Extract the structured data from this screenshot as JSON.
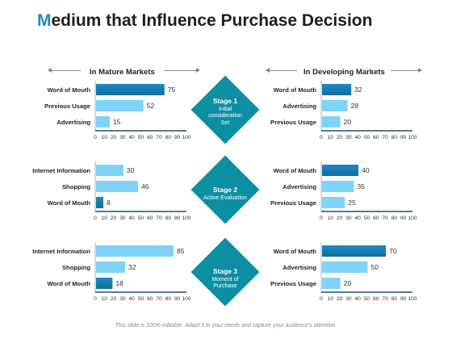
{
  "title": {
    "first_letter": "M",
    "rest": "edium that Influence Purchase Decision"
  },
  "sections": {
    "left": "In Mature Markets",
    "right": "In Developing Markets"
  },
  "stages": [
    {
      "name": "Stage 1",
      "desc": "Initial consideration Set"
    },
    {
      "name": "Stage 2",
      "desc": "Active Evaluation"
    },
    {
      "name": "Stage 3",
      "desc": "Moment of Purchase"
    }
  ],
  "footer": "This slide is 100% editable. Adapt it to your needs and capture your audience's attention.",
  "colors": {
    "light_bar": "#7fd3f7",
    "dark_bar_top": "#1e88c8",
    "dark_bar_bottom": "#0d6e9a",
    "axis": "#1f4e79",
    "diamond": "#0d8fa3"
  },
  "chart_data": [
    {
      "type": "bar",
      "orientation": "horizontal",
      "market": "In Mature Markets",
      "stage": "Stage 1",
      "categories": [
        "Word of Mouth",
        "Previous Usage",
        "Advertising"
      ],
      "values": [
        75,
        52,
        15
      ],
      "highlight": 0,
      "xlim": [
        0,
        100
      ],
      "ticks": [
        0,
        10,
        20,
        30,
        40,
        50,
        60,
        70,
        80,
        90,
        100
      ]
    },
    {
      "type": "bar",
      "orientation": "horizontal",
      "market": "In Developing Markets",
      "stage": "Stage 1",
      "categories": [
        "Word of Mouth",
        "Advertising",
        "Previous Usage"
      ],
      "values": [
        32,
        28,
        20
      ],
      "highlight": 0,
      "xlim": [
        0,
        100
      ],
      "ticks": [
        0,
        10,
        20,
        30,
        40,
        50,
        60,
        70,
        80,
        90,
        100
      ]
    },
    {
      "type": "bar",
      "orientation": "horizontal",
      "market": "In Mature Markets",
      "stage": "Stage 2",
      "categories": [
        "Internet Information",
        "Shopping",
        "Word of Mouth"
      ],
      "values": [
        30,
        46,
        8
      ],
      "highlight": 2,
      "xlim": [
        0,
        100
      ],
      "ticks": [
        0,
        10,
        20,
        30,
        40,
        50,
        60,
        70,
        80,
        90,
        100
      ]
    },
    {
      "type": "bar",
      "orientation": "horizontal",
      "market": "In Developing Markets",
      "stage": "Stage 2",
      "categories": [
        "Word of Mouth",
        "Advertising",
        "Previous Usage"
      ],
      "values": [
        40,
        35,
        25
      ],
      "highlight": 0,
      "xlim": [
        0,
        100
      ],
      "ticks": [
        0,
        10,
        20,
        30,
        40,
        50,
        60,
        70,
        80,
        90,
        100
      ]
    },
    {
      "type": "bar",
      "orientation": "horizontal",
      "market": "In Mature Markets",
      "stage": "Stage 3",
      "categories": [
        "Internet Information",
        "Shopping",
        "Word of Mouth"
      ],
      "values": [
        85,
        32,
        18
      ],
      "highlight": 2,
      "xlim": [
        0,
        100
      ],
      "ticks": [
        0,
        10,
        20,
        30,
        40,
        50,
        60,
        70,
        80,
        90,
        100
      ]
    },
    {
      "type": "bar",
      "orientation": "horizontal",
      "market": "In Developing Markets",
      "stage": "Stage 3",
      "categories": [
        "Word of Mouth",
        "Advertising",
        "Previous Usage"
      ],
      "values": [
        70,
        50,
        20
      ],
      "highlight": 0,
      "xlim": [
        0,
        100
      ],
      "ticks": [
        0,
        10,
        20,
        30,
        40,
        50,
        60,
        70,
        80,
        90,
        100
      ]
    }
  ]
}
